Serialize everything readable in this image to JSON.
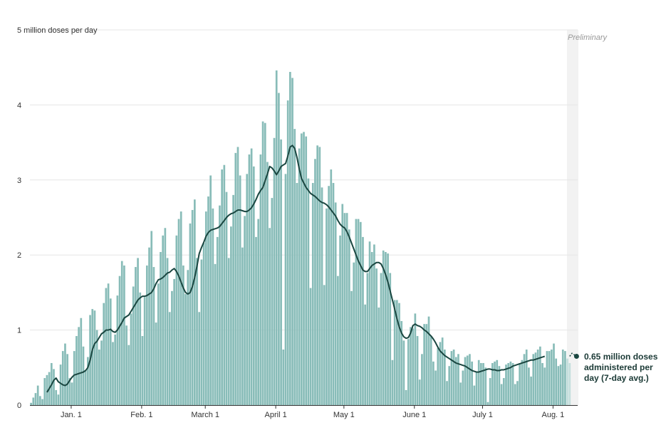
{
  "chart_data": {
    "type": "bar",
    "title": "",
    "xlabel": "",
    "ylabel": "5 million doses per day",
    "ylim": [
      0,
      5
    ],
    "y_ticks": [
      {
        "value": 0,
        "label": "0"
      },
      {
        "value": 1,
        "label": "1"
      },
      {
        "value": 2,
        "label": "2"
      },
      {
        "value": 3,
        "label": "3"
      },
      {
        "value": 4,
        "label": "4"
      },
      {
        "value": 5,
        "label": "5 million doses per day"
      }
    ],
    "x_range": [
      "2020-12-14",
      "2021-08-12"
    ],
    "x_ticks": [
      {
        "date": "2021-01-01",
        "label": "Jan. 1"
      },
      {
        "date": "2021-02-01",
        "label": "Feb. 1"
      },
      {
        "date": "2021-03-01",
        "label": "March 1"
      },
      {
        "date": "2021-04-01",
        "label": "April 1"
      },
      {
        "date": "2021-05-01",
        "label": "May 1"
      },
      {
        "date": "2021-06-01",
        "label": "June 1"
      },
      {
        "date": "2021-07-01",
        "label": "July 1"
      },
      {
        "date": "2021-08-01",
        "label": "Aug. 1"
      }
    ],
    "grid": true,
    "preliminary_label": "Preliminary",
    "preliminary_start": "2021-08-07",
    "series": [
      {
        "type": "bar",
        "start_date": "2020-12-14",
        "values": [
          0.03,
          0.1,
          0.16,
          0.26,
          0.12,
          0.08,
          0.36,
          0.4,
          0.44,
          0.56,
          0.48,
          0.2,
          0.14,
          0.54,
          0.72,
          0.82,
          0.68,
          0.36,
          0.3,
          0.72,
          0.92,
          1.04,
          1.16,
          0.78,
          0.46,
          0.64,
          1.2,
          1.28,
          1.26,
          1.0,
          0.74,
          0.86,
          1.36,
          1.56,
          1.62,
          1.42,
          0.84,
          0.94,
          1.46,
          1.72,
          1.92,
          1.86,
          1.06,
          0.8,
          1.22,
          1.58,
          1.84,
          1.96,
          1.5,
          0.92,
          1.44,
          1.86,
          2.1,
          2.32,
          1.84,
          1.1,
          1.62,
          2.04,
          2.26,
          2.36,
          1.96,
          1.24,
          1.52,
          1.68,
          2.26,
          2.48,
          2.58,
          1.86,
          1.48,
          1.8,
          2.42,
          2.6,
          2.74,
          1.96,
          1.24,
          1.94,
          2.16,
          2.58,
          2.78,
          3.06,
          2.62,
          1.88,
          2.24,
          2.66,
          3.14,
          3.2,
          2.84,
          1.96,
          2.38,
          2.8,
          3.36,
          3.44,
          3.06,
          2.1,
          2.52,
          3.08,
          3.34,
          3.42,
          3.18,
          2.24,
          2.48,
          3.34,
          3.78,
          3.76,
          3.24,
          2.36,
          2.76,
          3.56,
          4.46,
          4.16,
          3.54,
          0.74,
          3.08,
          4.06,
          4.44,
          4.36,
          3.68,
          2.96,
          3.42,
          3.62,
          3.64,
          3.58,
          3.02,
          1.56,
          2.96,
          3.28,
          3.46,
          3.44,
          2.9,
          1.6,
          2.62,
          2.92,
          3.14,
          2.96,
          2.7,
          1.72,
          2.26,
          2.68,
          2.56,
          2.56,
          2.34,
          1.52,
          1.9,
          2.48,
          2.48,
          2.44,
          2.24,
          1.34,
          1.76,
          2.18,
          2.04,
          2.14,
          1.82,
          1.3,
          1.76,
          2.06,
          2.04,
          2.02,
          1.76,
          0.6,
          1.4,
          1.4,
          1.36,
          1.12,
          0.86,
          0.2,
          0.88,
          1.04,
          1.02,
          1.22,
          0.92,
          0.34,
          0.68,
          1.08,
          1.08,
          1.18,
          0.92,
          0.58,
          0.46,
          0.76,
          0.84,
          0.9,
          0.74,
          0.32,
          0.52,
          0.72,
          0.74,
          0.64,
          0.68,
          0.3,
          0.46,
          0.64,
          0.66,
          0.68,
          0.58,
          0.26,
          0.44,
          0.6,
          0.56,
          0.56,
          0.5,
          0.04,
          0.36,
          0.56,
          0.58,
          0.6,
          0.52,
          0.28,
          0.36,
          0.54,
          0.56,
          0.58,
          0.56,
          0.28,
          0.32,
          0.56,
          0.6,
          0.68,
          0.74,
          0.5,
          0.38,
          0.68,
          0.7,
          0.74,
          0.78,
          0.56,
          0.5,
          0.72,
          0.72,
          0.74,
          0.82,
          0.62,
          0.52,
          0.54,
          0.74,
          0.72,
          0.62,
          0.56
        ]
      },
      {
        "type": "line",
        "name": "7-day avg.",
        "start_date": "2020-12-21",
        "values": [
          0.17,
          0.22,
          0.27,
          0.33,
          0.36,
          0.31,
          0.29,
          0.27,
          0.26,
          0.28,
          0.33,
          0.37,
          0.4,
          0.41,
          0.42,
          0.43,
          0.44,
          0.46,
          0.5,
          0.6,
          0.74,
          0.82,
          0.85,
          0.9,
          0.95,
          0.97,
          1.0,
          1.0,
          1.01,
          0.98,
          0.97,
          1.0,
          1.05,
          1.1,
          1.16,
          1.18,
          1.2,
          1.25,
          1.3,
          1.35,
          1.4,
          1.43,
          1.45,
          1.45,
          1.46,
          1.48,
          1.5,
          1.55,
          1.62,
          1.67,
          1.68,
          1.7,
          1.73,
          1.76,
          1.77,
          1.8,
          1.82,
          1.78,
          1.72,
          1.64,
          1.56,
          1.5,
          1.48,
          1.5,
          1.58,
          1.7,
          1.85,
          2.02,
          2.1,
          2.17,
          2.25,
          2.3,
          2.33,
          2.34,
          2.35,
          2.36,
          2.38,
          2.42,
          2.46,
          2.5,
          2.53,
          2.55,
          2.56,
          2.58,
          2.6,
          2.6,
          2.59,
          2.58,
          2.58,
          2.6,
          2.63,
          2.68,
          2.74,
          2.81,
          2.86,
          2.9,
          2.99,
          3.08,
          3.18,
          3.16,
          3.12,
          3.07,
          3.12,
          3.18,
          3.2,
          3.22,
          3.32,
          3.44,
          3.46,
          3.42,
          3.3,
          3.15,
          3.02,
          2.96,
          2.9,
          2.86,
          2.82,
          2.8,
          2.78,
          2.75,
          2.72,
          2.7,
          2.69,
          2.67,
          2.64,
          2.6,
          2.56,
          2.52,
          2.46,
          2.41,
          2.38,
          2.36,
          2.31,
          2.24,
          2.16,
          2.08,
          2.0,
          1.92,
          1.86,
          1.8,
          1.78,
          1.78,
          1.82,
          1.86,
          1.88,
          1.9,
          1.9,
          1.88,
          1.82,
          1.74,
          1.64,
          1.52,
          1.4,
          1.28,
          1.15,
          1.04,
          0.96,
          0.91,
          0.89,
          0.9,
          0.96,
          1.06,
          1.08,
          1.06,
          1.05,
          1.03,
          1.0,
          0.98,
          0.95,
          0.92,
          0.88,
          0.83,
          0.77,
          0.72,
          0.69,
          0.66,
          0.64,
          0.62,
          0.6,
          0.58,
          0.56,
          0.55,
          0.54,
          0.53,
          0.52,
          0.5,
          0.48,
          0.46,
          0.45,
          0.44,
          0.44,
          0.45,
          0.46,
          0.47,
          0.48,
          0.48,
          0.47,
          0.47,
          0.46,
          0.46,
          0.47,
          0.47,
          0.48,
          0.49,
          0.5,
          0.52,
          0.53,
          0.54,
          0.55,
          0.56,
          0.57,
          0.58,
          0.59,
          0.6,
          0.6,
          0.61,
          0.62,
          0.63,
          0.64,
          0.65
        ]
      },
      {
        "type": "line",
        "name": "7-day avg. (preliminary)",
        "start_date": "2021-08-08",
        "values": [
          0.65,
          0.69,
          0.67,
          0.65
        ]
      }
    ],
    "annotation": {
      "lines": [
        "0.65 million doses",
        "administered per",
        "day (7-day avg.)"
      ],
      "value": 0.65
    },
    "colors": {
      "bar": "#88bcb8",
      "bar_preliminary": "#c3dedc",
      "line": "#1a4640",
      "preliminary_band": "#f2f2f2",
      "grid": "#e6e6e6",
      "axis": "#333333"
    }
  }
}
